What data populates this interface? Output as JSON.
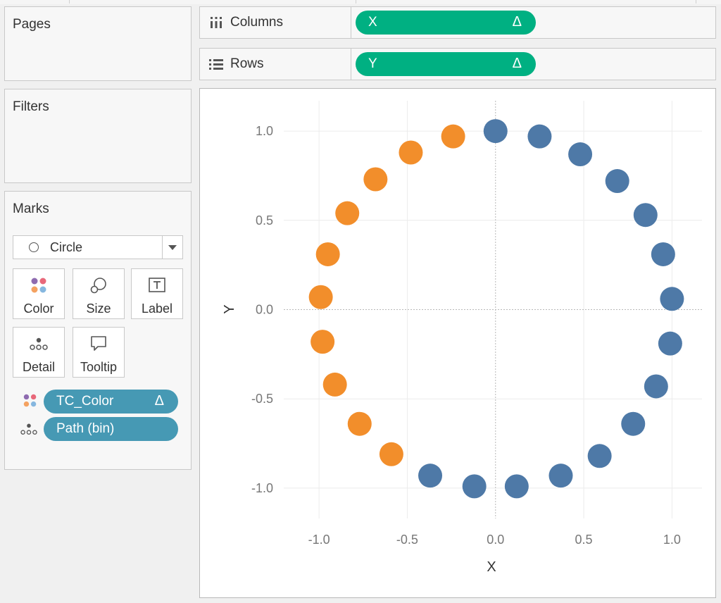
{
  "sidebar": {
    "pages_title": "Pages",
    "filters_title": "Filters",
    "marks": {
      "title": "Marks",
      "mark_type": "Circle",
      "buttons": [
        {
          "label": "Color",
          "icon": "color-dots-icon"
        },
        {
          "label": "Size",
          "icon": "size-icon"
        },
        {
          "label": "Label",
          "icon": "label-icon"
        },
        {
          "label": "Detail",
          "icon": "detail-icon"
        },
        {
          "label": "Tooltip",
          "icon": "tooltip-icon"
        }
      ],
      "fields": [
        {
          "label": "TC_Color",
          "delta": "Δ",
          "encoding": "color"
        },
        {
          "label": "Path (bin)",
          "encoding": "detail"
        }
      ]
    }
  },
  "shelves": {
    "columns": {
      "title": "Columns",
      "pill": "X",
      "delta": "Δ"
    },
    "rows": {
      "title": "Rows",
      "pill": "Y",
      "delta": "Δ"
    }
  },
  "colors": {
    "blue_mark": "#4e79a7",
    "orange_mark": "#f28e2b",
    "pill_green": "#00b082",
    "pill_blue": "#4699b4"
  },
  "chart_data": {
    "type": "scatter",
    "xlabel": "X",
    "ylabel": "Y",
    "xlim": [
      -1.2,
      1.17
    ],
    "ylim": [
      -1.17,
      1.17
    ],
    "xticks": [
      "-1.0",
      "-0.5",
      "0.0",
      "0.5",
      "1.0"
    ],
    "yticks": [
      "1.0",
      "0.5",
      "0.0",
      "-0.5",
      "-1.0"
    ],
    "xtick_values": [
      -1.0,
      -0.5,
      0.0,
      0.5,
      1.0
    ],
    "ytick_values": [
      1.0,
      0.5,
      0.0,
      -0.5,
      -1.0
    ],
    "grid": true,
    "zero_lines": true,
    "series": [
      {
        "color": "#f28e2b",
        "points": [
          [
            -0.24,
            0.97
          ],
          [
            -0.48,
            0.88
          ],
          [
            -0.68,
            0.73
          ],
          [
            -0.84,
            0.54
          ],
          [
            -0.95,
            0.31
          ],
          [
            -0.99,
            0.07
          ],
          [
            -0.98,
            -0.18
          ],
          [
            -0.91,
            -0.42
          ],
          [
            -0.77,
            -0.64
          ],
          [
            -0.59,
            -0.81
          ]
        ]
      },
      {
        "color": "#4e79a7",
        "points": [
          [
            0.0,
            1.0
          ],
          [
            0.25,
            0.97
          ],
          [
            0.48,
            0.87
          ],
          [
            0.69,
            0.72
          ],
          [
            0.85,
            0.53
          ],
          [
            0.95,
            0.31
          ],
          [
            1.0,
            0.06
          ],
          [
            0.99,
            -0.19
          ],
          [
            0.91,
            -0.43
          ],
          [
            0.78,
            -0.64
          ],
          [
            0.59,
            -0.82
          ],
          [
            0.37,
            -0.93
          ],
          [
            0.12,
            -0.99
          ],
          [
            -0.12,
            -0.99
          ],
          [
            -0.37,
            -0.93
          ]
        ]
      }
    ]
  }
}
